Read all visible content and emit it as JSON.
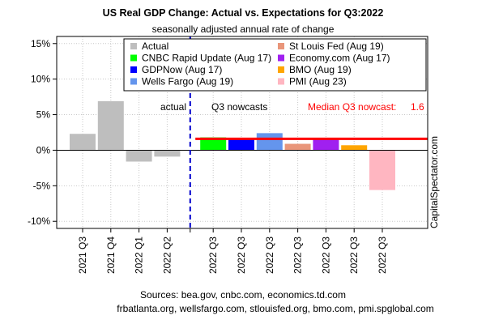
{
  "chart_data": {
    "type": "bar",
    "title": "US Real GDP Change: Actual vs. Expectations for Q3:2022",
    "subtitle": "seasonally adjusted annual rate of change",
    "xlabel": "",
    "ylabel": "",
    "ylim": [
      -11,
      16
    ],
    "yticks": [
      -10,
      -5,
      0,
      5,
      10,
      15
    ],
    "ytick_labels": [
      "-10%",
      "-5%",
      "0%",
      "5%",
      "10%",
      "15%"
    ],
    "grid": true,
    "categories": [
      "2021 Q3",
      "2021 Q4",
      "2022 Q1",
      "2022 Q2",
      "2022 Q3",
      "2022 Q3",
      "2022 Q3",
      "2022 Q3",
      "2022 Q3",
      "2022 Q3",
      "2022 Q3"
    ],
    "bars": [
      {
        "series": "Actual",
        "category": "2021 Q3",
        "value": 2.3
      },
      {
        "series": "Actual",
        "category": "2021 Q4",
        "value": 6.9
      },
      {
        "series": "Actual",
        "category": "2022 Q1",
        "value": -1.6
      },
      {
        "series": "Actual",
        "category": "2022 Q2",
        "value": -0.9
      },
      {
        "series": "CNBC Rapid Update (Aug 17)",
        "category": "2022 Q3",
        "value": 1.8
      },
      {
        "series": "GDPNow (Aug 17)",
        "category": "2022 Q3",
        "value": 1.6
      },
      {
        "series": "Wells Fargo (Aug 19)",
        "category": "2022 Q3",
        "value": 2.4
      },
      {
        "series": "St Louis Fed (Aug 19)",
        "category": "2022 Q3",
        "value": 0.9
      },
      {
        "series": "Economy.com (Aug 17)",
        "category": "2022 Q3",
        "value": 1.6
      },
      {
        "series": "BMO (Aug 19)",
        "category": "2022 Q3",
        "value": 0.7
      },
      {
        "series": "PMI (Aug 23)",
        "category": "2022 Q3",
        "value": -5.6
      }
    ],
    "legend": {
      "placement": "top",
      "entries": [
        {
          "name": "Actual",
          "color": "#bebebe"
        },
        {
          "name": "St Louis Fed (Aug 19)",
          "color": "#e9967a"
        },
        {
          "name": "CNBC Rapid Update (Aug 17)",
          "color": "#00ff00"
        },
        {
          "name": "Economy.com (Aug 17)",
          "color": "#a020f0"
        },
        {
          "name": "GDPNow (Aug 17)",
          "color": "#0000ff"
        },
        {
          "name": "BMO (Aug 19)",
          "color": "#ffa500"
        },
        {
          "name": "Wells Fargo (Aug 19)",
          "color": "#6495ed"
        },
        {
          "name": "PMI (Aug 23)",
          "color": "#ffb6c1"
        }
      ]
    },
    "annotations": {
      "actual_label": "actual",
      "nowcast_label": "Q3 nowcasts",
      "median_label": "Median Q3 nowcast:",
      "median_value_text": "1.6",
      "median_value": 1.6,
      "median_color": "#ff0000",
      "divider_color": "#0000cd"
    },
    "watermark": "CapitalSpectator.com",
    "sources": [
      "Sources: bea.gov, cnbc.com, economics.td.com",
      "frbatlanta.org, wellsfargo.com, stlouisfed.org, bmo.com, pmi.spglobal.com"
    ]
  }
}
